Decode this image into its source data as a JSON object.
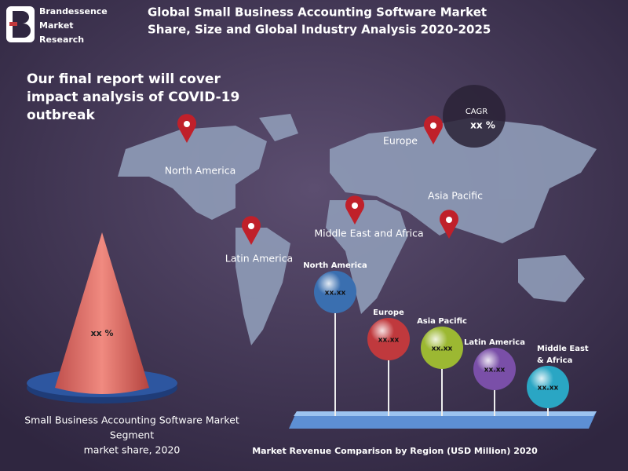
{
  "logo": {
    "lines": [
      "Brandessence",
      "Market",
      "Research"
    ]
  },
  "title_lines": [
    "Global Small Business Accounting Software Market",
    "Share, Size and Global Industry Analysis 2020-2025"
  ],
  "covid_note": [
    "Our final report will cover",
    "impact analysis of COVID-19",
    "outbreak"
  ],
  "cagr": {
    "label": "CAGR",
    "value": "xx %"
  },
  "map_regions": [
    "North America",
    "Europe",
    "Asia Pacific",
    "Middle East and Africa",
    "Latin America"
  ],
  "cone": {
    "value": "xx %",
    "caption": [
      "Small Business Accounting Software  Market",
      "Segment",
      "market share, 2020"
    ]
  },
  "balls": [
    {
      "label": [
        "North America"
      ],
      "value": "xx.xx",
      "color": "#3a6fb0"
    },
    {
      "label": [
        "Europe"
      ],
      "value": "xx.xx",
      "color": "#c0393d"
    },
    {
      "label": [
        "Asia Pacific"
      ],
      "value": "xx.xx",
      "color": "#9cb832"
    },
    {
      "label": [
        "Latin America"
      ],
      "value": "xx.xx",
      "color": "#7a4fa8"
    },
    {
      "label": [
        "Middle East",
        "& Africa"
      ],
      "value": "xx.xx",
      "color": "#2aa6c4"
    }
  ],
  "bottom_caption": "Market Revenue Comparison by Region (USD Million) 2020"
}
